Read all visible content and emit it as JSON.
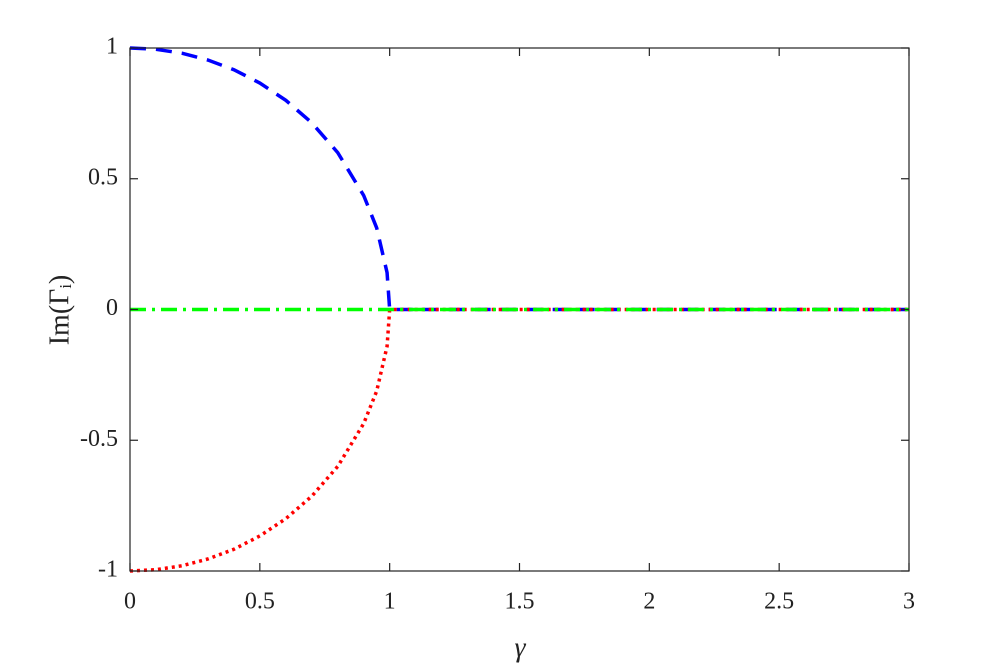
{
  "chart_data": {
    "type": "line",
    "xlabel": "γ",
    "ylabel": "Im(Γᵢ)",
    "x": [
      0,
      0.1,
      0.2,
      0.3,
      0.4,
      0.5,
      0.6,
      0.7,
      0.8,
      0.9,
      0.95,
      0.99,
      1,
      1.5,
      2,
      2.5,
      3
    ],
    "series": [
      {
        "color": "#0000ff",
        "style": "dashed",
        "values": [
          1,
          0.995,
          0.98,
          0.954,
          0.917,
          0.866,
          0.8,
          0.714,
          0.6,
          0.436,
          0.312,
          0.141,
          0,
          0,
          0,
          0,
          0
        ]
      },
      {
        "color": "#ff0000",
        "style": "dotted",
        "values": [
          -1,
          -0.995,
          -0.98,
          -0.954,
          -0.917,
          -0.866,
          -0.8,
          -0.714,
          -0.6,
          -0.436,
          -0.312,
          -0.141,
          0,
          0,
          0,
          0,
          0
        ]
      },
      {
        "color": "#00ff00",
        "style": "dashdot",
        "values": [
          0,
          0,
          0,
          0,
          0,
          0,
          0,
          0,
          0,
          0,
          0,
          0,
          0,
          0,
          0,
          0,
          0
        ]
      }
    ],
    "xlim": [
      0,
      3
    ],
    "xticks": [
      0,
      0.5,
      1,
      1.5,
      2,
      2.5,
      3
    ],
    "ylim": [
      -1,
      1
    ],
    "yticks": [
      -1,
      -0.5,
      0,
      0.5,
      1
    ]
  }
}
